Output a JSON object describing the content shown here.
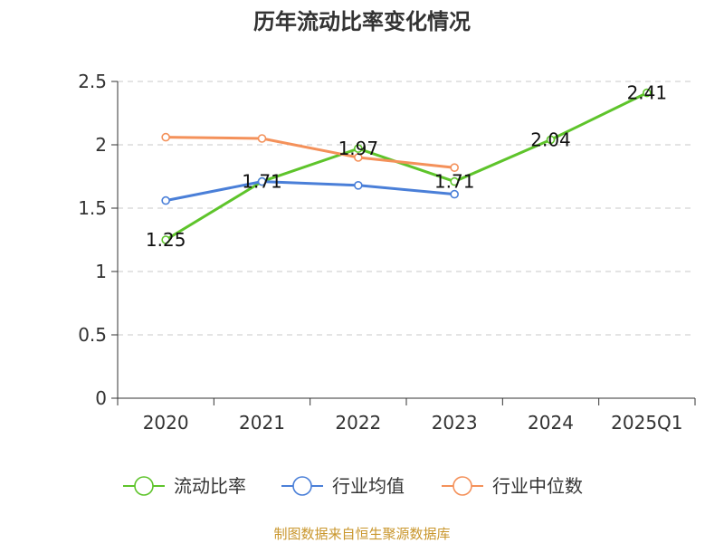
{
  "chart_data": {
    "type": "line",
    "title": "历年流动比率变化情况",
    "categories": [
      "2020",
      "2021",
      "2022",
      "2023",
      "2024",
      "2025Q1"
    ],
    "ylim": [
      0,
      2.5
    ],
    "yticks": [
      "0",
      "0.5",
      "1",
      "1.5",
      "2",
      "2.5"
    ],
    "ytick_values": [
      0,
      0.5,
      1,
      1.5,
      2,
      2.5
    ],
    "grid": true,
    "legend_position": "bottom",
    "series": [
      {
        "name": "流动比率",
        "color": "#5ec42b",
        "values": [
          1.25,
          1.71,
          1.97,
          1.71,
          2.04,
          2.41
        ],
        "labels": [
          "1.25",
          "1.71",
          "1.97",
          "1.71",
          "2.04",
          "2.41"
        ]
      },
      {
        "name": "行业均值",
        "color": "#4a7fd8",
        "values": [
          1.56,
          1.71,
          1.68,
          1.61,
          null,
          null
        ]
      },
      {
        "name": "行业中位数",
        "color": "#f4915a",
        "values": [
          2.06,
          2.05,
          1.9,
          1.82,
          null,
          null
        ]
      }
    ],
    "source": "制图数据来自恒生聚源数据库"
  }
}
